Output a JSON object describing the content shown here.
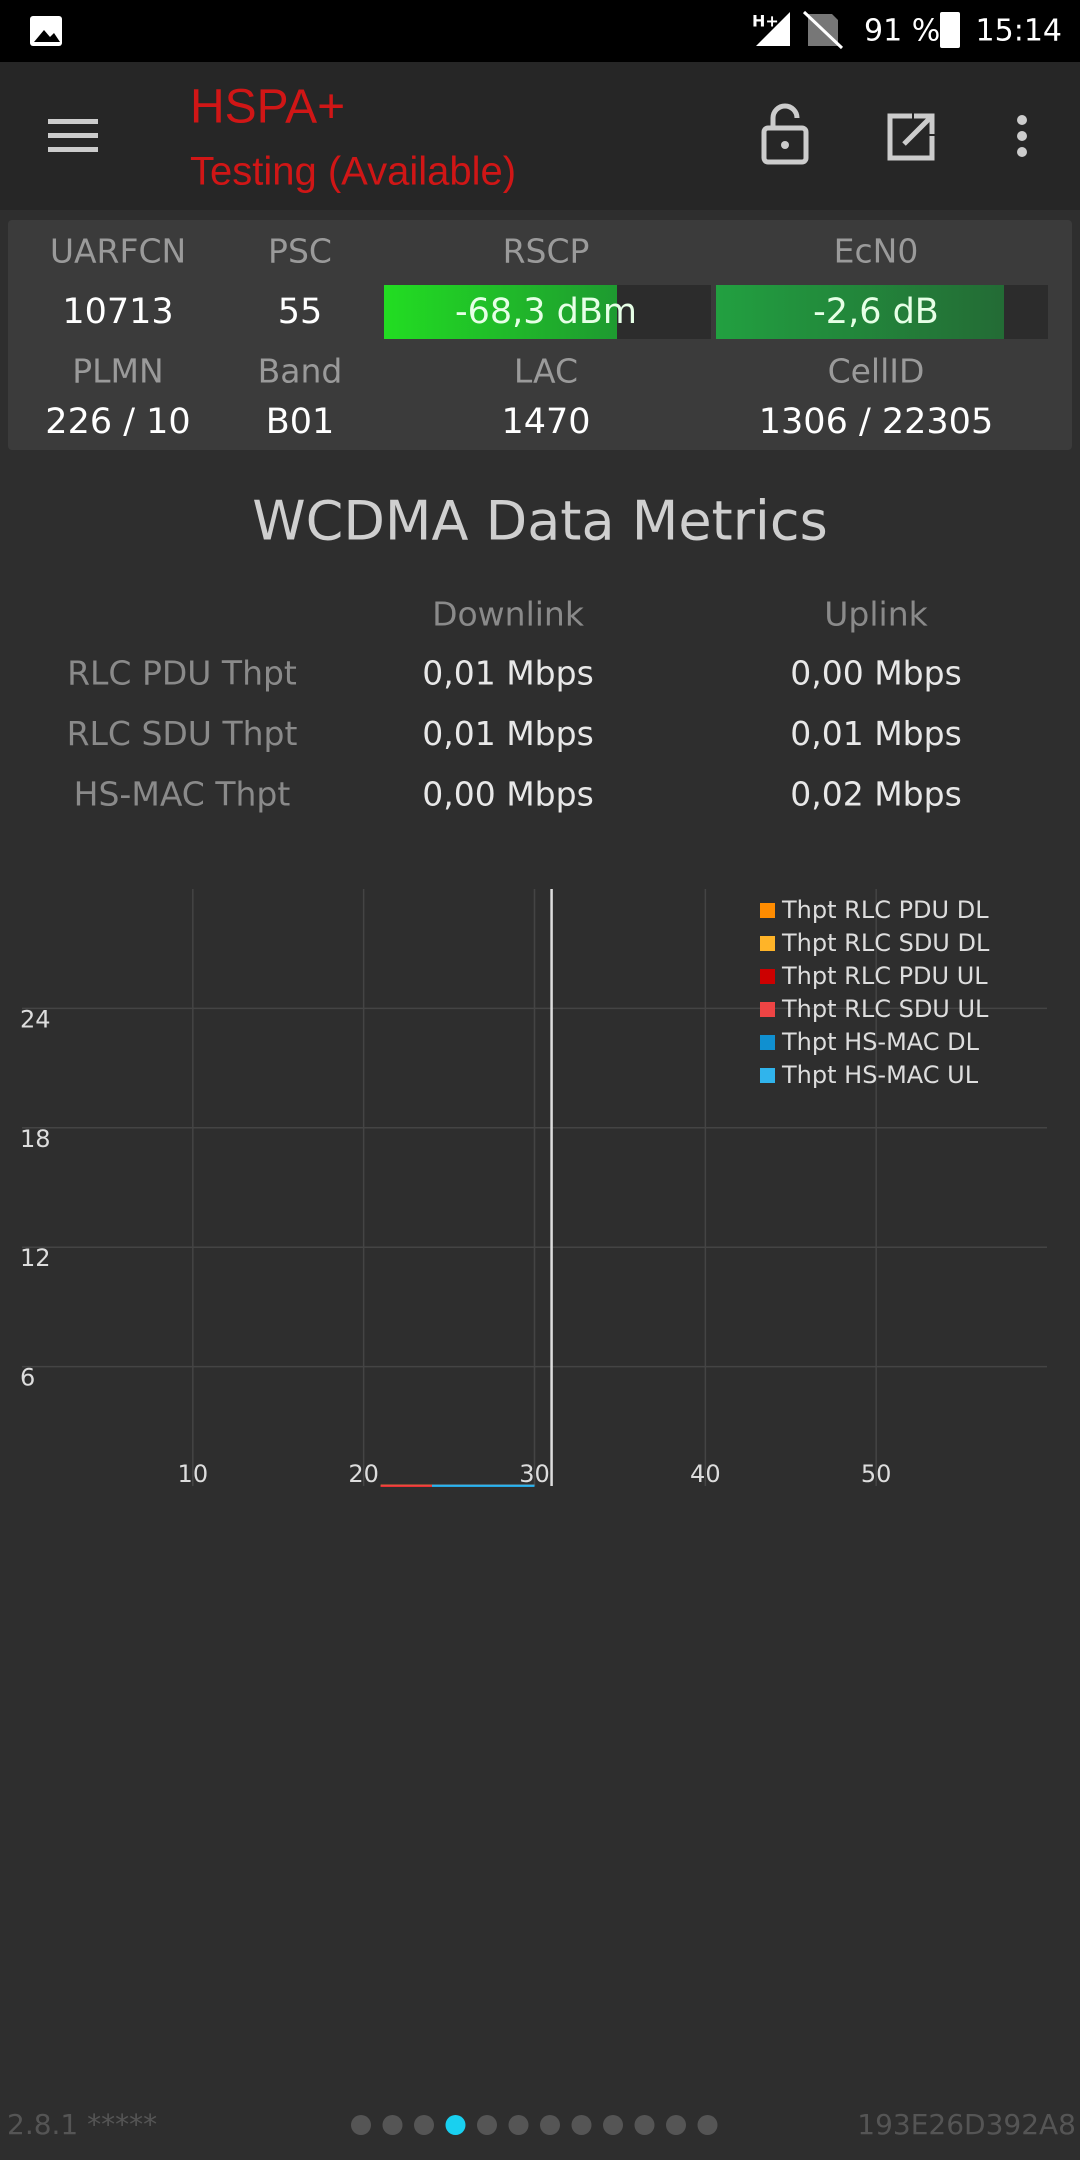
{
  "status_bar": {
    "network": "H+",
    "battery": "91 %",
    "time": "15:14"
  },
  "app_bar": {
    "title": "HSPA+",
    "subtitle": "Testing (Available)"
  },
  "cell_info": {
    "rows": [
      {
        "labels": [
          "UARFCN",
          "PSC",
          "RSCP",
          "EcN0"
        ],
        "values": [
          "10713",
          "55",
          "-68,3 dBm",
          "-2,6 dB"
        ]
      },
      {
        "labels": [
          "PLMN",
          "Band",
          "LAC",
          "CellID"
        ],
        "values": [
          "226 / 10",
          "B01",
          "1470",
          "1306 / 22305"
        ]
      }
    ]
  },
  "metrics": {
    "title": "WCDMA Data Metrics",
    "columns": [
      "Downlink",
      "Uplink"
    ],
    "rows": [
      {
        "label": "RLC PDU Thpt",
        "values": [
          "0,01 Mbps",
          "0,00 Mbps"
        ]
      },
      {
        "label": "RLC SDU Thpt",
        "values": [
          "0,01 Mbps",
          "0,01 Mbps"
        ]
      },
      {
        "label": "HS-MAC Thpt",
        "values": [
          "0,00 Mbps",
          "0,02 Mbps"
        ]
      }
    ]
  },
  "chart_data": {
    "type": "line",
    "x": [
      21,
      22,
      23,
      24,
      25,
      26,
      27,
      28,
      29,
      30
    ],
    "xlim": [
      0,
      60
    ],
    "ylim": [
      0,
      30
    ],
    "xticks": [
      10,
      20,
      30,
      40,
      50
    ],
    "yticks": [
      6,
      12,
      18,
      24
    ],
    "grid": true,
    "legend": "top-right",
    "marker_x": 31,
    "series": [
      {
        "name": "Thpt RLC PDU DL",
        "color": "#ff8c00",
        "values": [
          0.01,
          0.01,
          0.01,
          0.01,
          0.01,
          0.01,
          0.01,
          0.01,
          0.01,
          0.01
        ]
      },
      {
        "name": "Thpt RLC SDU DL",
        "color": "#ffb428",
        "values": [
          0.01,
          0.01,
          0.01,
          0.01,
          0.01,
          0.01,
          0.01,
          0.01,
          0.01,
          0.01
        ]
      },
      {
        "name": "Thpt RLC PDU UL",
        "color": "#cc0000",
        "values": [
          0,
          0,
          0,
          0,
          0,
          0,
          0,
          0,
          0,
          0
        ]
      },
      {
        "name": "Thpt RLC SDU UL",
        "color": "#ee4444",
        "values": [
          0.01,
          0.01,
          0.01,
          0.01,
          0.01,
          0.01,
          0.01,
          0.01,
          0.01,
          0.01
        ]
      },
      {
        "name": "Thpt HS-MAC DL",
        "color": "#1090d0",
        "values": [
          null,
          null,
          null,
          0,
          0,
          0,
          0,
          0,
          0,
          0
        ]
      },
      {
        "name": "Thpt HS-MAC UL",
        "color": "#30b4ec",
        "values": [
          null,
          null,
          null,
          0.02,
          0.02,
          0.02,
          0.02,
          0.02,
          0.02,
          0.02
        ]
      }
    ]
  },
  "footer": {
    "version": "2.8.1 *****",
    "device_id": "193E26D392A8",
    "pager": {
      "count": 12,
      "active": 3
    }
  }
}
